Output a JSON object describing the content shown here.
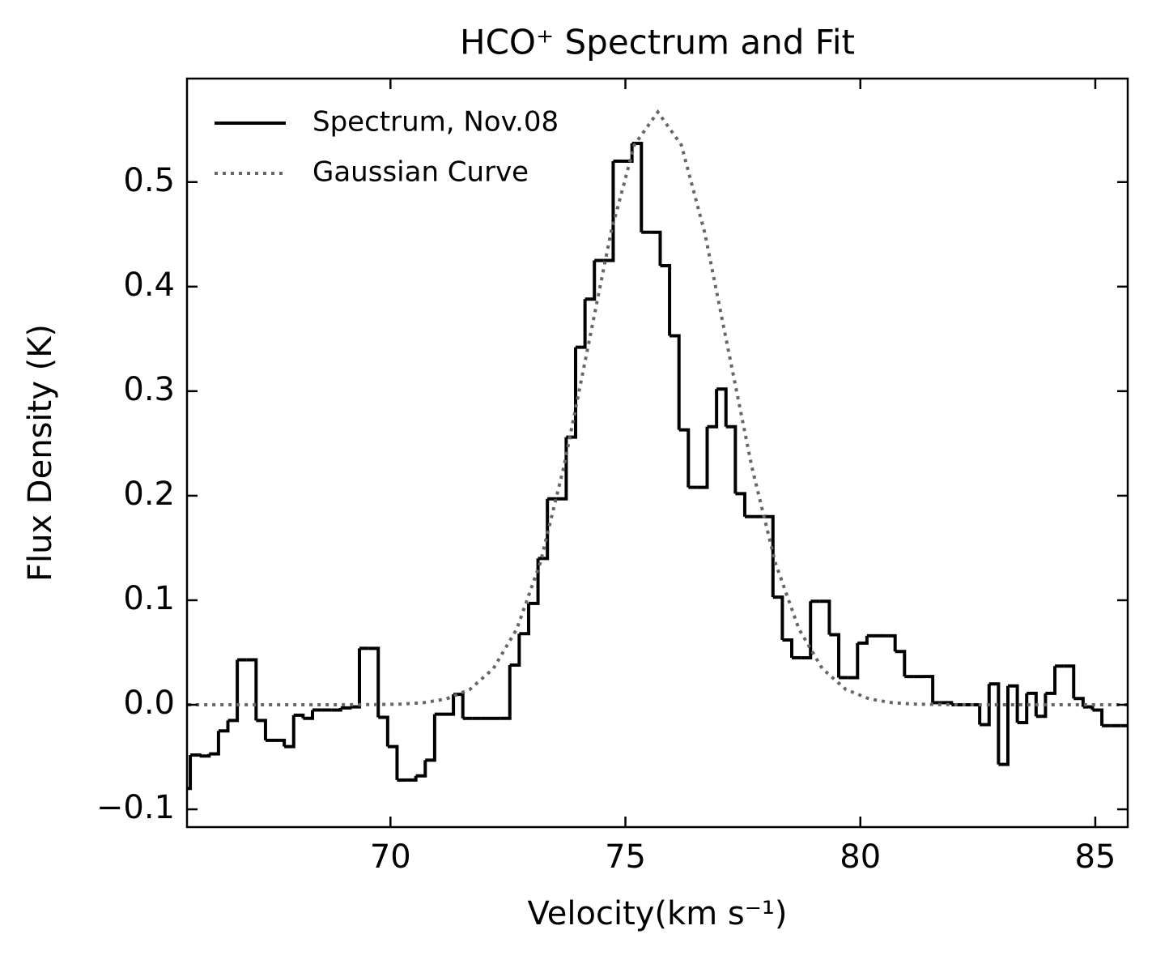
{
  "chart_data": {
    "type": "line",
    "title": "HCO⁺ Spectrum and Fit",
    "xlabel": "Velocity(km s⁻¹)",
    "ylabel": "Flux Density (K)",
    "xlim": [
      65.67,
      85.69
    ],
    "ylim": [
      -0.117,
      0.599
    ],
    "xticks": [
      70,
      75,
      80,
      85
    ],
    "yticks": [
      {
        "value": -0.1,
        "label": "−0.1"
      },
      {
        "value": 0,
        "label": "0.0"
      },
      0.1,
      0.2,
      0.3,
      0.4,
      0.5
    ],
    "legend": "upper left",
    "series": [
      {
        "name": "Spectrum, Nov.08",
        "color": "#000000",
        "style": "steps-mid",
        "x": [
          65.64,
          65.84,
          66.04,
          66.24,
          66.44,
          66.64,
          66.84,
          67.04,
          67.24,
          67.44,
          67.64,
          67.84,
          68.04,
          68.24,
          68.44,
          68.64,
          68.84,
          69.04,
          69.24,
          69.44,
          69.64,
          69.84,
          70.04,
          70.24,
          70.44,
          70.64,
          70.84,
          71.04,
          71.24,
          71.44,
          71.64,
          71.84,
          72.04,
          72.24,
          72.44,
          72.64,
          72.84,
          73.04,
          73.24,
          73.44,
          73.64,
          73.84,
          74.04,
          74.24,
          74.44,
          74.64,
          74.84,
          75.04,
          75.24,
          75.44,
          75.64,
          75.84,
          76.04,
          76.24,
          76.44,
          76.64,
          76.84,
          77.04,
          77.24,
          77.44,
          77.64,
          77.84,
          78.04,
          78.24,
          78.44,
          78.64,
          78.84,
          79.04,
          79.24,
          79.44,
          79.64,
          79.84,
          80.04,
          80.24,
          80.44,
          80.64,
          80.84,
          81.04,
          81.24,
          81.44,
          81.64,
          81.84,
          82.04,
          82.24,
          82.44,
          82.64,
          82.84,
          83.04,
          83.24,
          83.44,
          83.64,
          83.84,
          84.04,
          84.24,
          84.44,
          84.64,
          84.84,
          85.04,
          85.24,
          85.44,
          85.64
        ],
        "values": [
          -0.08,
          -0.048,
          -0.049,
          -0.047,
          -0.025,
          -0.015,
          0.043,
          0.043,
          -0.015,
          -0.034,
          -0.034,
          -0.04,
          -0.01,
          -0.013,
          -0.005,
          -0.005,
          -0.005,
          -0.003,
          -0.002,
          0.054,
          0.054,
          -0.012,
          -0.04,
          -0.072,
          -0.072,
          -0.068,
          -0.053,
          -0.009,
          -0.009,
          0.01,
          -0.013,
          -0.013,
          -0.013,
          -0.013,
          -0.013,
          0.038,
          0.068,
          0.097,
          0.14,
          0.197,
          0.197,
          0.256,
          0.342,
          0.388,
          0.425,
          0.425,
          0.52,
          0.52,
          0.537,
          0.452,
          0.452,
          0.42,
          0.353,
          0.263,
          0.208,
          0.208,
          0.266,
          0.302,
          0.266,
          0.202,
          0.18,
          0.18,
          0.18,
          0.103,
          0.062,
          0.045,
          0.045,
          0.099,
          0.099,
          0.067,
          0.026,
          0.026,
          0.059,
          0.066,
          0.066,
          0.066,
          0.051,
          0.027,
          0.027,
          0.027,
          0.002,
          0.002,
          0,
          0,
          0,
          -0.019,
          0.02,
          -0.057,
          0.018,
          -0.017,
          0.011,
          -0.011,
          0.011,
          0.037,
          0.037,
          0.006,
          -0.002,
          -0.005,
          -0.02,
          -0.02,
          -0.02
        ]
      },
      {
        "name": "Gaussian Curve",
        "color": "#666666",
        "style": "dotted",
        "x": [
          65.69,
          66.19,
          66.69,
          67.19,
          67.69,
          68.19,
          68.69,
          69.19,
          69.69,
          70.19,
          70.69,
          71.19,
          71.69,
          72.19,
          72.69,
          73.19,
          73.69,
          74.19,
          74.69,
          75.19,
          75.69,
          76.19,
          76.69,
          77.19,
          77.69,
          78.19,
          78.69,
          79.19,
          79.69,
          80.19,
          80.69,
          81.19,
          81.69,
          82.19,
          82.69,
          83.19,
          83.69,
          84.19,
          84.69,
          85.19,
          85.69
        ],
        "values": [
          0,
          0,
          0,
          0,
          0,
          0,
          0,
          0.0001,
          0.0002,
          0.0006,
          0.0019,
          0.0056,
          0.0147,
          0.0346,
          0.0727,
          0.1361,
          0.2276,
          0.3393,
          0.4513,
          0.5355,
          0.567,
          0.5355,
          0.4513,
          0.3393,
          0.2276,
          0.1361,
          0.0727,
          0.0346,
          0.0147,
          0.0056,
          0.0019,
          0.0006,
          0.0002,
          0.0001,
          0,
          0,
          0,
          0,
          0,
          0,
          0
        ]
      }
    ]
  }
}
